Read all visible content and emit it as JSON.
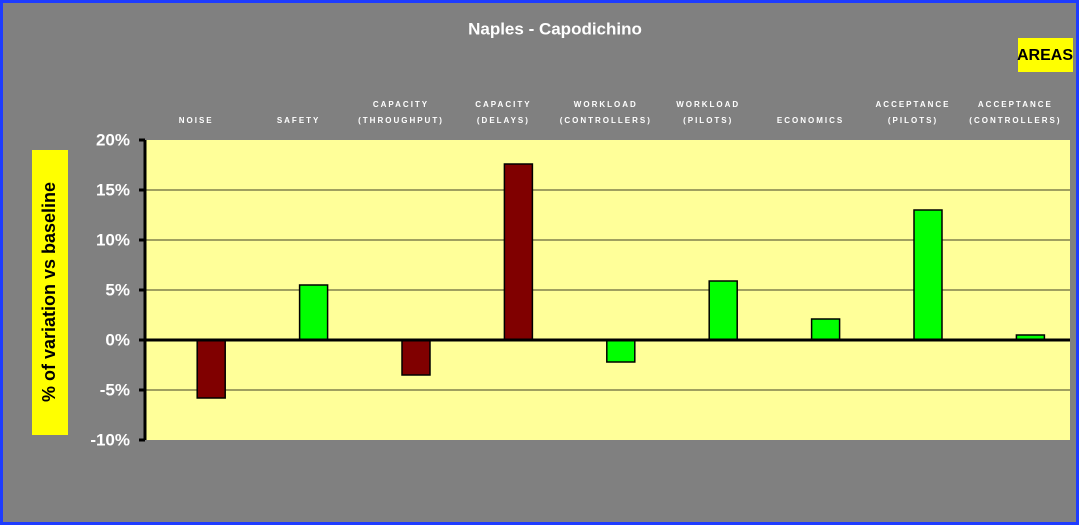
{
  "chart_data": {
    "type": "bar",
    "title": "Naples - Capodichino",
    "legend_title": "AREAS",
    "y_label": "% of variation vs baseline",
    "categories": [
      [
        "NOISE"
      ],
      [
        "SAFETY"
      ],
      [
        "CAPACITY",
        "(THROUGHPUT)"
      ],
      [
        "CAPACITY",
        "(DELAYS)"
      ],
      [
        "WORKLOAD",
        "(CONTROLLERS)"
      ],
      [
        "WORKLOAD",
        "(PILOTS)"
      ],
      [
        "ECONOMICS"
      ],
      [
        "ACCEPTANCE",
        "(PILOTS)"
      ],
      [
        "ACCEPTANCE",
        "(CONTROLLERS)"
      ]
    ],
    "values": [
      -5.8,
      5.5,
      -3.5,
      17.6,
      -2.2,
      5.9,
      2.1,
      13.0,
      0.5
    ],
    "colors": [
      "#800000",
      "#00ff00",
      "#800000",
      "#800000",
      "#00ff00",
      "#00ff00",
      "#00ff00",
      "#00ff00",
      "#00ff00"
    ],
    "ylim": [
      -10,
      20
    ],
    "yticks": [
      {
        "value": -10,
        "label": "-10%"
      },
      {
        "value": -5,
        "label": "-5%"
      },
      {
        "value": 0,
        "label": "0%"
      },
      {
        "value": 5,
        "label": "5%"
      },
      {
        "value": 10,
        "label": "10%"
      },
      {
        "value": 15,
        "label": "15%"
      },
      {
        "value": 20,
        "label": "20%"
      }
    ],
    "grid": true
  }
}
